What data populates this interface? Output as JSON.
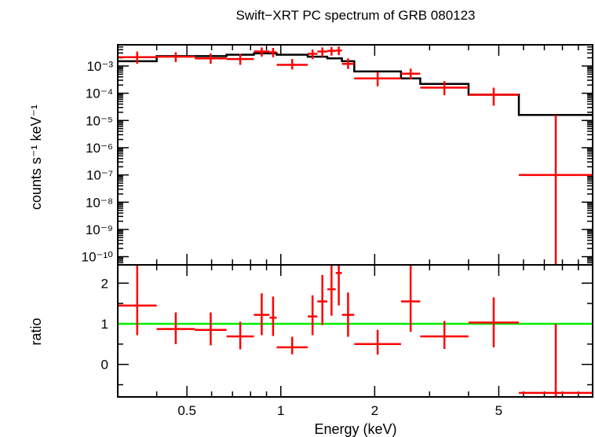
{
  "chart_data": {
    "title": "Swift−XRT PC spectrum of GRB 080123",
    "xlabel": "Energy (keV)",
    "xscale": "log",
    "xlim": [
      0.3,
      10
    ],
    "x_tick_labels": [
      "0.5",
      "1",
      "2",
      "5"
    ],
    "panels": [
      {
        "type": "scatter",
        "name": "spectrum",
        "ylabel": "counts s⁻¹ keV⁻¹",
        "yscale": "log",
        "ylim": [
          5e-11,
          0.006
        ],
        "y_tick_labels": [
          "10⁻³",
          "10⁻⁴",
          "10⁻⁵",
          "10⁻⁶",
          "10⁻⁷",
          "10⁻⁸",
          "10⁻⁹",
          "10⁻¹⁰"
        ],
        "color_data": "#ff0000",
        "color_model": "#000000",
        "data": [
          {
            "xlo": 0.3,
            "xhi": 0.4,
            "y": 0.0021,
            "ylo": 0.0012,
            "yhi": 0.0034
          },
          {
            "xlo": 0.4,
            "xhi": 0.53,
            "y": 0.0022,
            "ylo": 0.0014,
            "yhi": 0.0032
          },
          {
            "xlo": 0.53,
            "xhi": 0.67,
            "y": 0.0019,
            "ylo": 0.0012,
            "yhi": 0.0029
          },
          {
            "xlo": 0.67,
            "xhi": 0.82,
            "y": 0.0018,
            "ylo": 0.0011,
            "yhi": 0.0028
          },
          {
            "xlo": 0.82,
            "xhi": 0.92,
            "y": 0.0034,
            "ylo": 0.0022,
            "yhi": 0.0048
          },
          {
            "xlo": 0.92,
            "xhi": 0.97,
            "y": 0.0032,
            "ylo": 0.0021,
            "yhi": 0.0046
          },
          {
            "xlo": 0.97,
            "xhi": 1.22,
            "y": 0.0011,
            "ylo": 0.00075,
            "yhi": 0.0018
          },
          {
            "xlo": 1.22,
            "xhi": 1.31,
            "y": 0.0028,
            "ylo": 0.0018,
            "yhi": 0.004
          },
          {
            "xlo": 1.31,
            "xhi": 1.41,
            "y": 0.0034,
            "ylo": 0.0022,
            "yhi": 0.0048
          },
          {
            "xlo": 1.41,
            "xhi": 1.5,
            "y": 0.0036,
            "ylo": 0.0024,
            "yhi": 0.005
          },
          {
            "xlo": 1.5,
            "xhi": 1.57,
            "y": 0.0037,
            "ylo": 0.0025,
            "yhi": 0.0052
          },
          {
            "xlo": 1.57,
            "xhi": 1.72,
            "y": 0.0012,
            "ylo": 0.00078,
            "yhi": 0.0019
          },
          {
            "xlo": 1.72,
            "xhi": 2.43,
            "y": 0.00035,
            "ylo": 0.00018,
            "yhi": 0.0006
          },
          {
            "xlo": 2.43,
            "xhi": 2.8,
            "y": 0.00052,
            "ylo": 0.00032,
            "yhi": 0.0008
          },
          {
            "xlo": 2.8,
            "xhi": 4.0,
            "y": 0.00016,
            "ylo": 8.5e-05,
            "yhi": 0.00028
          },
          {
            "xlo": 4.0,
            "xhi": 5.8,
            "y": 8.8e-05,
            "ylo": 3.5e-05,
            "yhi": 0.00016
          },
          {
            "xlo": 5.8,
            "xhi": 10.0,
            "y": 1e-07,
            "ylo": 5e-11,
            "yhi": 1.6e-05
          }
        ],
        "model": [
          {
            "xlo": 0.3,
            "xhi": 0.4,
            "y": 0.0015
          },
          {
            "xlo": 0.4,
            "xhi": 0.67,
            "y": 0.0023
          },
          {
            "xlo": 0.67,
            "xhi": 0.82,
            "y": 0.0026
          },
          {
            "xlo": 0.82,
            "xhi": 0.97,
            "y": 0.0029
          },
          {
            "xlo": 0.97,
            "xhi": 1.22,
            "y": 0.0026
          },
          {
            "xlo": 1.22,
            "xhi": 1.41,
            "y": 0.0022
          },
          {
            "xlo": 1.41,
            "xhi": 1.57,
            "y": 0.0019
          },
          {
            "xlo": 1.57,
            "xhi": 1.72,
            "y": 0.0015
          },
          {
            "xlo": 1.72,
            "xhi": 2.43,
            "y": 0.00063
          },
          {
            "xlo": 2.43,
            "xhi": 2.8,
            "y": 0.00035
          },
          {
            "xlo": 2.8,
            "xhi": 4.0,
            "y": 0.00022
          },
          {
            "xlo": 4.0,
            "xhi": 5.8,
            "y": 8.8e-05
          },
          {
            "xlo": 5.8,
            "xhi": 10.0,
            "y": 1.6e-05
          }
        ]
      },
      {
        "type": "scatter",
        "name": "ratio",
        "ylabel": "ratio",
        "yscale": "linear",
        "ylim": [
          -0.8,
          2.45
        ],
        "y_tick_labels": [
          "2",
          "1",
          "0"
        ],
        "reference_line": 1,
        "color_data": "#ff0000",
        "color_reference": "#00ee00",
        "data": [
          {
            "xlo": 0.3,
            "xhi": 0.4,
            "y": 1.45,
            "ylo": 0.72,
            "yhi": 2.45
          },
          {
            "xlo": 0.4,
            "xhi": 0.53,
            "y": 0.87,
            "ylo": 0.5,
            "yhi": 1.28
          },
          {
            "xlo": 0.53,
            "xhi": 0.67,
            "y": 0.85,
            "ylo": 0.47,
            "yhi": 1.28
          },
          {
            "xlo": 0.67,
            "xhi": 0.82,
            "y": 0.69,
            "ylo": 0.37,
            "yhi": 1.05
          },
          {
            "xlo": 0.82,
            "xhi": 0.92,
            "y": 1.22,
            "ylo": 0.72,
            "yhi": 1.75
          },
          {
            "xlo": 0.92,
            "xhi": 0.97,
            "y": 1.15,
            "ylo": 0.7,
            "yhi": 1.67
          },
          {
            "xlo": 0.97,
            "xhi": 1.22,
            "y": 0.42,
            "ylo": 0.25,
            "yhi": 0.68
          },
          {
            "xlo": 1.22,
            "xhi": 1.31,
            "y": 1.18,
            "ylo": 0.72,
            "yhi": 1.7
          },
          {
            "xlo": 1.31,
            "xhi": 1.41,
            "y": 1.55,
            "ylo": 0.97,
            "yhi": 2.2
          },
          {
            "xlo": 1.41,
            "xhi": 1.5,
            "y": 1.85,
            "ylo": 1.2,
            "yhi": 2.45
          },
          {
            "xlo": 1.5,
            "xhi": 1.57,
            "y": 2.25,
            "ylo": 1.45,
            "yhi": 2.45
          },
          {
            "xlo": 1.57,
            "xhi": 1.72,
            "y": 1.22,
            "ylo": 0.68,
            "yhi": 1.77
          },
          {
            "xlo": 1.72,
            "xhi": 2.43,
            "y": 0.5,
            "ylo": 0.24,
            "yhi": 0.85
          },
          {
            "xlo": 2.43,
            "xhi": 2.8,
            "y": 1.55,
            "ylo": 0.8,
            "yhi": 2.45
          },
          {
            "xlo": 2.8,
            "xhi": 4.0,
            "y": 0.69,
            "ylo": 0.38,
            "yhi": 1.07
          },
          {
            "xlo": 4.0,
            "xhi": 5.8,
            "y": 1.03,
            "ylo": 0.42,
            "yhi": 1.65
          },
          {
            "xlo": 5.8,
            "xhi": 10.0,
            "y": -0.7,
            "ylo": -0.8,
            "yhi": 1.0
          }
        ]
      }
    ]
  }
}
